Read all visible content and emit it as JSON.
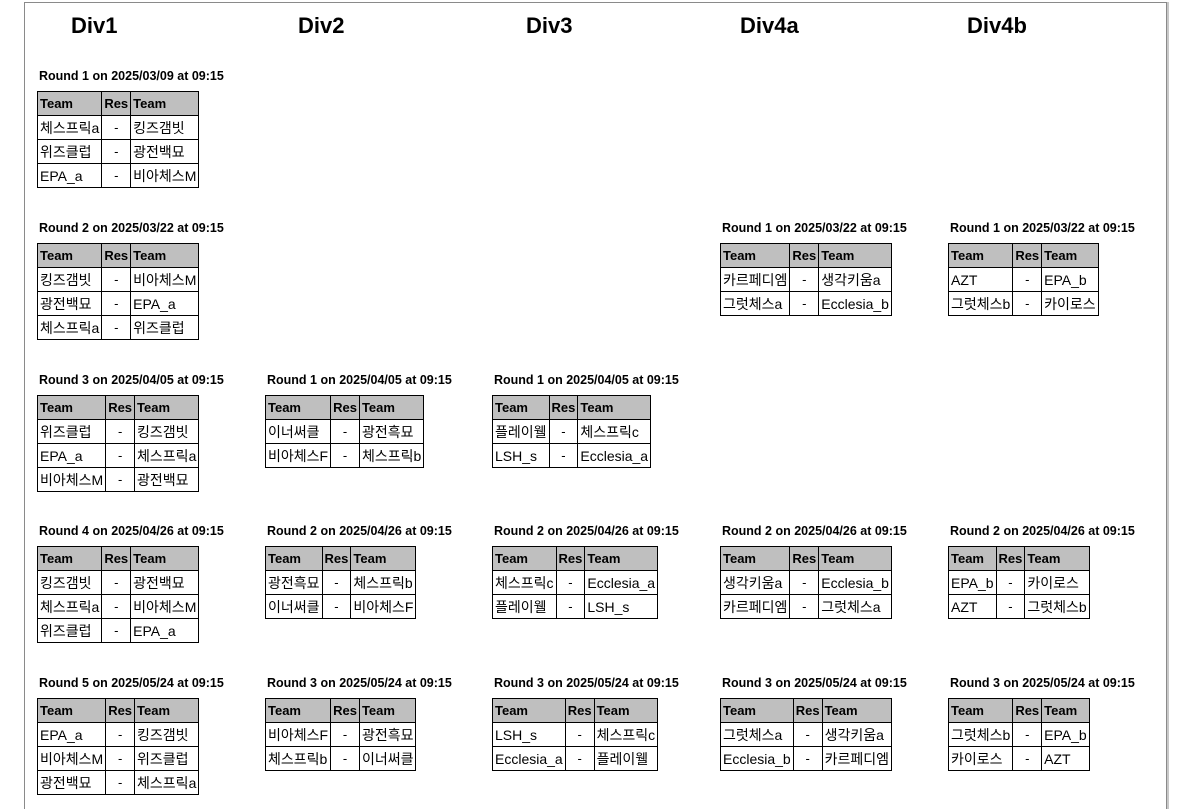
{
  "divisions": [
    "Div1",
    "Div2",
    "Div3",
    "Div4a",
    "Div4b"
  ],
  "headers": {
    "team": "Team",
    "res": "Res"
  },
  "columns": [
    {
      "rounds": [
        {
          "title": "Round 1 on 2025/03/09 at 09:15",
          "matches": [
            [
              "체스프릭a",
              "-",
              "킹즈갬빗"
            ],
            [
              "위즈클럽",
              "-",
              "광전백묘"
            ],
            [
              "EPA_a",
              "-",
              "비아체스M"
            ]
          ]
        },
        {
          "title": "Round 2 on 2025/03/22 at 09:15",
          "matches": [
            [
              "킹즈갬빗",
              "-",
              "비아체스M"
            ],
            [
              "광전백묘",
              "-",
              "EPA_a"
            ],
            [
              "체스프릭a",
              "-",
              "위즈클럽"
            ]
          ]
        },
        {
          "title": "Round 3 on 2025/04/05 at 09:15",
          "matches": [
            [
              "위즈클럽",
              "-",
              "킹즈갬빗"
            ],
            [
              "EPA_a",
              "-",
              "체스프릭a"
            ],
            [
              "비아체스M",
              "-",
              "광전백묘"
            ]
          ]
        },
        {
          "title": "Round 4 on 2025/04/26 at 09:15",
          "matches": [
            [
              "킹즈갬빗",
              "-",
              "광전백묘"
            ],
            [
              "체스프릭a",
              "-",
              "비아체스M"
            ],
            [
              "위즈클럽",
              "-",
              "EPA_a"
            ]
          ]
        },
        {
          "title": "Round 5 on 2025/05/24 at 09:15",
          "matches": [
            [
              "EPA_a",
              "-",
              "킹즈갬빗"
            ],
            [
              "비아체스M",
              "-",
              "위즈클럽"
            ],
            [
              "광전백묘",
              "-",
              "체스프릭a"
            ]
          ]
        }
      ]
    },
    {
      "rounds": [
        null,
        null,
        {
          "title": "Round 1 on 2025/04/05 at 09:15",
          "matches": [
            [
              "이너써클",
              "-",
              "광전흑묘"
            ],
            [
              "비아체스F",
              "-",
              "체스프릭b"
            ]
          ]
        },
        {
          "title": "Round 2 on 2025/04/26 at 09:15",
          "matches": [
            [
              "광전흑묘",
              "-",
              "체스프릭b"
            ],
            [
              "이너써클",
              "-",
              "비아체스F"
            ]
          ]
        },
        {
          "title": "Round 3 on 2025/05/24 at 09:15",
          "matches": [
            [
              "비아체스F",
              "-",
              "광전흑묘"
            ],
            [
              "체스프릭b",
              "-",
              "이너써클"
            ]
          ]
        }
      ]
    },
    {
      "rounds": [
        null,
        null,
        {
          "title": "Round 1 on 2025/04/05 at 09:15",
          "matches": [
            [
              "플레이웰",
              "-",
              "체스프릭c"
            ],
            [
              "LSH_s",
              "-",
              "Ecclesia_a"
            ]
          ]
        },
        {
          "title": "Round 2 on 2025/04/26 at 09:15",
          "matches": [
            [
              "체스프릭c",
              "-",
              "Ecclesia_a"
            ],
            [
              "플레이웰",
              "-",
              "LSH_s"
            ]
          ]
        },
        {
          "title": "Round 3 on 2025/05/24 at 09:15",
          "matches": [
            [
              "LSH_s",
              "-",
              "체스프릭c"
            ],
            [
              "Ecclesia_a",
              "-",
              "플레이웰"
            ]
          ]
        }
      ]
    },
    {
      "rounds": [
        null,
        {
          "title": "Round 1 on 2025/03/22 at 09:15",
          "matches": [
            [
              "카르페디엠",
              "-",
              "생각키움a"
            ],
            [
              "그럿체스a",
              "-",
              "Ecclesia_b"
            ]
          ]
        },
        null,
        {
          "title": "Round 2 on 2025/04/26 at 09:15",
          "matches": [
            [
              "생각키움a",
              "-",
              "Ecclesia_b"
            ],
            [
              "카르페디엠",
              "-",
              "그럿체스a"
            ]
          ]
        },
        {
          "title": "Round 3 on 2025/05/24 at 09:15",
          "matches": [
            [
              "그럿체스a",
              "-",
              "생각키움a"
            ],
            [
              "Ecclesia_b",
              "-",
              "카르페디엠"
            ]
          ]
        }
      ]
    },
    {
      "rounds": [
        null,
        {
          "title": "Round 1 on 2025/03/22 at 09:15",
          "matches": [
            [
              "AZT",
              "-",
              "EPA_b"
            ],
            [
              "그럿체스b",
              "-",
              "카이로스"
            ]
          ]
        },
        null,
        {
          "title": "Round 2 on 2025/04/26 at 09:15",
          "matches": [
            [
              "EPA_b",
              "-",
              "카이로스"
            ],
            [
              "AZT",
              "-",
              "그럿체스b"
            ]
          ]
        },
        {
          "title": "Round 3 on 2025/05/24 at 09:15",
          "matches": [
            [
              "그럿체스b",
              "-",
              "EPA_b"
            ],
            [
              "카이로스",
              "-",
              "AZT"
            ]
          ]
        }
      ]
    }
  ]
}
